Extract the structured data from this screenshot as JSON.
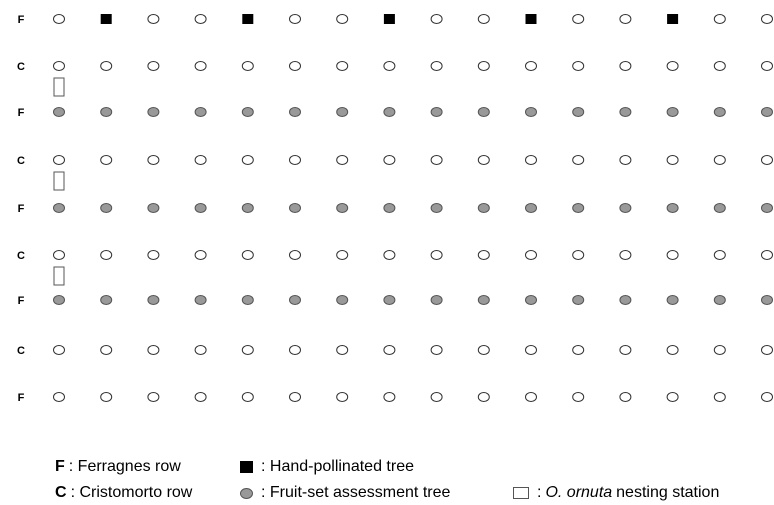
{
  "colors": {
    "open_tree_stroke": "#333333",
    "hand_pollinated": "#000000",
    "fruit_set_fill": "#999999",
    "fruit_set_stroke": "#555555",
    "station_stroke": "#555555"
  },
  "grid": {
    "columns": 16,
    "rows": [
      {
        "label": "F",
        "trees": [
          "open",
          "hand",
          "open",
          "open",
          "hand",
          "open",
          "open",
          "hand",
          "open",
          "open",
          "hand",
          "open",
          "open",
          "hand",
          "open",
          "open"
        ]
      },
      {
        "label": "C",
        "trees": [
          "open",
          "open",
          "open",
          "open",
          "open",
          "open",
          "open",
          "open",
          "open",
          "open",
          "open",
          "open",
          "open",
          "open",
          "open",
          "open"
        ],
        "station_column": 0
      },
      {
        "label": "F",
        "trees": [
          "grey",
          "grey",
          "grey",
          "grey",
          "grey",
          "grey",
          "grey",
          "grey",
          "grey",
          "grey",
          "grey",
          "grey",
          "grey",
          "grey",
          "grey",
          "grey"
        ]
      },
      {
        "label": "C",
        "trees": [
          "open",
          "open",
          "open",
          "open",
          "open",
          "open",
          "open",
          "open",
          "open",
          "open",
          "open",
          "open",
          "open",
          "open",
          "open",
          "open"
        ],
        "station_column": 0
      },
      {
        "label": "F",
        "trees": [
          "grey",
          "grey",
          "grey",
          "grey",
          "grey",
          "grey",
          "grey",
          "grey",
          "grey",
          "grey",
          "grey",
          "grey",
          "grey",
          "grey",
          "grey",
          "grey"
        ]
      },
      {
        "label": "C",
        "trees": [
          "open",
          "open",
          "open",
          "open",
          "open",
          "open",
          "open",
          "open",
          "open",
          "open",
          "open",
          "open",
          "open",
          "open",
          "open",
          "open"
        ],
        "station_column": 0
      },
      {
        "label": "F",
        "trees": [
          "grey",
          "grey",
          "grey",
          "grey",
          "grey",
          "grey",
          "grey",
          "grey",
          "grey",
          "grey",
          "grey",
          "grey",
          "grey",
          "grey",
          "grey",
          "grey"
        ]
      },
      {
        "label": "C",
        "trees": [
          "open",
          "open",
          "open",
          "open",
          "open",
          "open",
          "open",
          "open",
          "open",
          "open",
          "open",
          "open",
          "open",
          "open",
          "open",
          "open"
        ]
      },
      {
        "label": "F",
        "trees": [
          "open",
          "open",
          "open",
          "open",
          "open",
          "open",
          "open",
          "open",
          "open",
          "open",
          "open",
          "open",
          "open",
          "open",
          "open",
          "open"
        ]
      }
    ]
  },
  "legend": {
    "ferragnes": {
      "key": "F",
      "text": ": Ferragnes row"
    },
    "cristomorto": {
      "key": "C",
      "text": ": Cristomorto row"
    },
    "hand_pollinated": {
      "text": ": Hand-pollinated tree",
      "icon": "black-square"
    },
    "fruit_set": {
      "text": ": Fruit-set assessment tree",
      "icon": "grey-circle"
    },
    "nesting": {
      "prefix": ":",
      "species": "O. ornuta",
      "suffix": "nesting station",
      "icon": "open-rectangle"
    }
  }
}
